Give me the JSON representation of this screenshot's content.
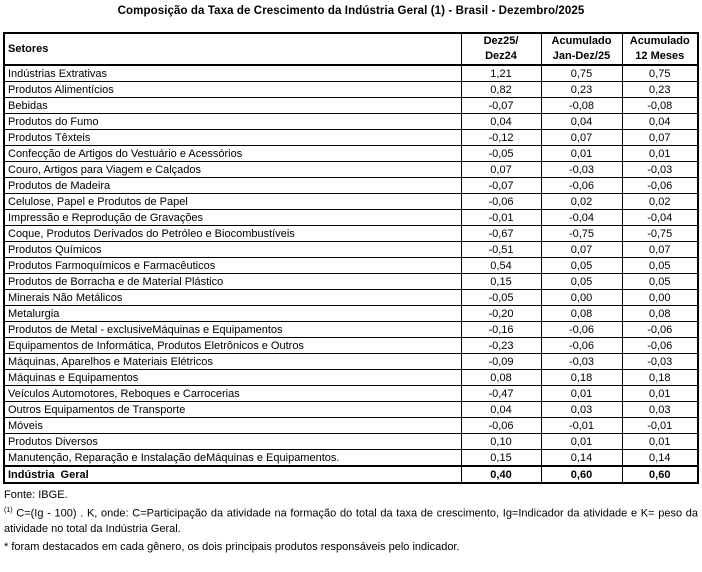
{
  "title": "Composição da Taxa de Crescimento da Indústria Geral (1) - Brasil - Dezembro/2025",
  "table": {
    "headers": {
      "sector": "Setores",
      "col1_line1": "Dez25/",
      "col1_line2": "Dez24",
      "col2_line1": "Acumulado",
      "col2_line2": "Jan-Dez/25",
      "col3_line1": "Acumulado",
      "col3_line2": "12 Meses"
    },
    "rows": [
      {
        "sector": "Indústrias Extrativas",
        "dez25_dez24": "1,21",
        "acumulado_jan_dez25": "0,75",
        "acumulado_12_meses": "0,75"
      },
      {
        "sector": "Produtos Alimentícios",
        "dez25_dez24": "0,82",
        "acumulado_jan_dez25": "0,23",
        "acumulado_12_meses": "0,23"
      },
      {
        "sector": "Bebidas",
        "dez25_dez24": "-0,07",
        "acumulado_jan_dez25": "-0,08",
        "acumulado_12_meses": "-0,08"
      },
      {
        "sector": "Produtos do Fumo",
        "dez25_dez24": "0,04",
        "acumulado_jan_dez25": "0,04",
        "acumulado_12_meses": "0,04"
      },
      {
        "sector": "Produtos Têxteis",
        "dez25_dez24": "-0,12",
        "acumulado_jan_dez25": "0,07",
        "acumulado_12_meses": "0,07"
      },
      {
        "sector": "Confecção de Artigos do Vestuário e Acessórios",
        "dez25_dez24": "-0,05",
        "acumulado_jan_dez25": "0,01",
        "acumulado_12_meses": "0,01"
      },
      {
        "sector": "Couro, Artigos para Viagem e Calçados",
        "dez25_dez24": "0,07",
        "acumulado_jan_dez25": "-0,03",
        "acumulado_12_meses": "-0,03"
      },
      {
        "sector": "Produtos de Madeira",
        "dez25_dez24": "-0,07",
        "acumulado_jan_dez25": "-0,06",
        "acumulado_12_meses": "-0,06"
      },
      {
        "sector": "Celulose, Papel e Produtos de Papel",
        "dez25_dez24": "-0,06",
        "acumulado_jan_dez25": "0,02",
        "acumulado_12_meses": "0,02"
      },
      {
        "sector": "Impressão e Reprodução de Gravações",
        "dez25_dez24": "-0,01",
        "acumulado_jan_dez25": "-0,04",
        "acumulado_12_meses": "-0,04"
      },
      {
        "sector": "Coque, Produtos Derivados do Petróleo e Biocombustíveis",
        "dez25_dez24": "-0,67",
        "acumulado_jan_dez25": "-0,75",
        "acumulado_12_meses": "-0,75"
      },
      {
        "sector": "Produtos Químicos",
        "dez25_dez24": "-0,51",
        "acumulado_jan_dez25": "0,07",
        "acumulado_12_meses": "0,07"
      },
      {
        "sector": "Produtos Farmoquímicos e Farmacêuticos",
        "dez25_dez24": "0,54",
        "acumulado_jan_dez25": "0,05",
        "acumulado_12_meses": "0,05"
      },
      {
        "sector": "Produtos de Borracha e de Material Plástico",
        "dez25_dez24": "0,15",
        "acumulado_jan_dez25": "0,05",
        "acumulado_12_meses": "0,05"
      },
      {
        "sector": "Minerais Não Metálicos",
        "dez25_dez24": "-0,05",
        "acumulado_jan_dez25": "0,00",
        "acumulado_12_meses": "0,00"
      },
      {
        "sector": "Metalurgia",
        "dez25_dez24": "-0,20",
        "acumulado_jan_dez25": "0,08",
        "acumulado_12_meses": "0,08"
      },
      {
        "sector": "Produtos de Metal - exclusiveMáquinas e Equipamentos",
        "dez25_dez24": "-0,16",
        "acumulado_jan_dez25": "-0,06",
        "acumulado_12_meses": "-0,06"
      },
      {
        "sector": "Equipamentos de Informática, Produtos Eletrônicos e Outros",
        "dez25_dez24": "-0,23",
        "acumulado_jan_dez25": "-0,06",
        "acumulado_12_meses": "-0,06"
      },
      {
        "sector": "Máquinas, Aparelhos e Materiais Elétricos",
        "dez25_dez24": "-0,09",
        "acumulado_jan_dez25": "-0,03",
        "acumulado_12_meses": "-0,03"
      },
      {
        "sector": "Máquinas e Equipamentos",
        "dez25_dez24": "0,08",
        "acumulado_jan_dez25": "0,18",
        "acumulado_12_meses": "0,18"
      },
      {
        "sector": "Veículos Automotores, Reboques e Carrocerias",
        "dez25_dez24": "-0,47",
        "acumulado_jan_dez25": "0,01",
        "acumulado_12_meses": "0,01"
      },
      {
        "sector": "Outros Equipamentos de Transporte",
        "dez25_dez24": "0,04",
        "acumulado_jan_dez25": "0,03",
        "acumulado_12_meses": "0,03"
      },
      {
        "sector": "Móveis",
        "dez25_dez24": "-0,06",
        "acumulado_jan_dez25": "-0,01",
        "acumulado_12_meses": "-0,01"
      },
      {
        "sector": "Produtos Diversos",
        "dez25_dez24": "0,10",
        "acumulado_jan_dez25": "0,01",
        "acumulado_12_meses": "0,01"
      },
      {
        "sector": "Manutenção, Reparação e Instalação deMáquinas e Equipamentos.",
        "dez25_dez24": "0,15",
        "acumulado_jan_dez25": "0,14",
        "acumulado_12_meses": "0,14"
      }
    ],
    "total_row": {
      "sector": "Indústria  Geral",
      "dez25_dez24": "0,40",
      "acumulado_jan_dez25": "0,60",
      "acumulado_12_meses": "0,60"
    }
  },
  "footer": {
    "source": "Fonte: IBGE.",
    "note1_marker": "(1)",
    "note1_text": " C=(Ig - 100) . K, onde: C=Participação da atividade na formação do total da taxa de crescimento, Ig=Indicador da atividade  e K= peso da atividade no total da Indústria Geral.",
    "note2": "* foram destacados em cada gênero, os dois principais produtos responsáveis pelo indicador."
  },
  "colors": {
    "background": "#ffffff",
    "text": "#000000",
    "border": "#000000"
  }
}
